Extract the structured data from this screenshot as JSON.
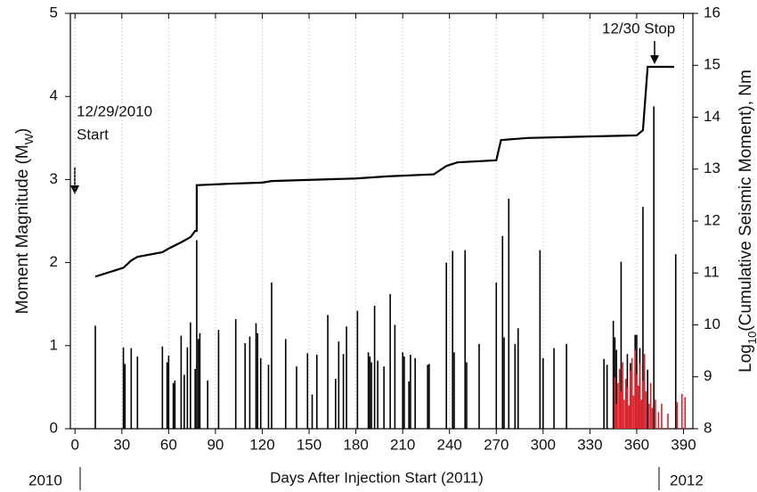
{
  "chart_data": {
    "type": "stem",
    "xlabel": "Days After Injection Start (2011)",
    "ylabel": [
      "Moment Magnitude (M",
      "W",
      ")"
    ],
    "y2label": [
      "Log",
      "10",
      "(Cumulative Seismic Moment), Nm"
    ],
    "xlim": [
      -3,
      396
    ],
    "xticks": [
      0,
      30,
      60,
      90,
      120,
      150,
      180,
      210,
      240,
      270,
      300,
      330,
      360,
      390
    ],
    "ylim": [
      0,
      5
    ],
    "yticks": [
      0,
      1,
      2,
      3,
      4,
      5
    ],
    "y2lim": [
      8,
      16
    ],
    "y2ticks": [
      8,
      9,
      10,
      11,
      12,
      13,
      14,
      15,
      16
    ],
    "grid": true,
    "start_label": [
      "12/29/2010",
      "Start"
    ],
    "stop_label": "12/30  Stop",
    "year_left": "2010",
    "year_right": "2012",
    "series": [
      {
        "color": "#000000",
        "x": [
          13,
          31,
          32,
          36,
          40,
          56,
          59,
          60,
          63,
          64,
          68,
          70,
          72,
          74,
          77,
          78,
          79,
          80,
          85,
          92,
          103,
          109,
          112,
          116,
          117,
          119,
          124,
          126,
          135,
          142,
          149,
          152,
          155,
          162,
          167,
          169,
          172,
          174,
          181,
          188,
          189,
          190,
          192,
          194,
          198,
          202,
          205,
          210,
          211,
          214,
          215,
          218,
          226,
          227,
          238,
          242,
          243,
          250,
          251,
          259,
          270,
          274,
          275,
          278,
          282,
          284,
          298,
          300,
          307,
          315,
          339,
          341,
          345,
          346,
          347,
          350,
          354,
          356,
          359,
          360,
          362,
          364,
          367,
          371,
          385
        ],
        "values": [
          1.24,
          0.98,
          0.78,
          0.97,
          0.87,
          0.99,
          0.8,
          0.88,
          0.55,
          0.58,
          1.12,
          0.65,
          0.98,
          1.28,
          0.72,
          2.27,
          1.08,
          1.15,
          0.58,
          1.19,
          1.32,
          1.03,
          1.11,
          1.27,
          1.15,
          0.85,
          0.77,
          1.76,
          1.08,
          0.75,
          0.91,
          0.41,
          0.89,
          1.37,
          0.6,
          1.05,
          0.9,
          1.23,
          1.42,
          0.92,
          0.87,
          0.8,
          1.48,
          0.82,
          0.75,
          1.62,
          1.25,
          0.92,
          0.87,
          0.57,
          0.89,
          0.85,
          0.77,
          0.78,
          2.0,
          2.14,
          0.92,
          2.15,
          0.8,
          1.02,
          1.76,
          2.32,
          1.1,
          2.77,
          1.02,
          1.21,
          2.15,
          0.85,
          0.97,
          1.02,
          0.84,
          0.77,
          1.3,
          1.1,
          0.95,
          2.01,
          0.9,
          0.79,
          1.13,
          1.13,
          0.97,
          2.67,
          0.71,
          3.88,
          2.1
        ]
      },
      {
        "color": "#e0202a",
        "x": [
          346,
          347,
          348,
          349,
          350,
          351,
          352,
          353,
          354,
          355,
          356,
          357,
          358,
          359,
          360,
          361,
          362,
          363,
          364,
          365,
          366,
          368,
          369,
          370,
          372,
          374,
          376,
          380,
          386,
          389,
          391
        ],
        "values": [
          0.62,
          0.3,
          0.55,
          0.72,
          0.45,
          0.8,
          0.35,
          0.6,
          0.5,
          0.28,
          0.7,
          0.85,
          0.4,
          0.95,
          0.65,
          0.52,
          0.78,
          0.35,
          0.58,
          0.9,
          0.45,
          0.3,
          0.55,
          0.25,
          0.35,
          0.2,
          0.3,
          0.18,
          0.32,
          0.42,
          0.38
        ]
      },
      {
        "type": "line",
        "axis": "y2",
        "color": "#000000",
        "x": [
          13,
          31,
          36,
          40,
          56,
          60,
          68,
          74,
          77,
          78,
          78,
          100,
          120,
          126,
          180,
          200,
          230,
          238,
          245,
          270,
          273,
          290,
          360,
          364,
          367,
          384
        ],
        "values": [
          10.93,
          11.1,
          11.24,
          11.31,
          11.4,
          11.47,
          11.59,
          11.69,
          11.81,
          11.81,
          12.69,
          12.72,
          12.74,
          12.77,
          12.82,
          12.86,
          12.9,
          13.06,
          13.13,
          13.17,
          13.56,
          13.6,
          13.65,
          13.75,
          14.97,
          14.97
        ]
      }
    ]
  }
}
